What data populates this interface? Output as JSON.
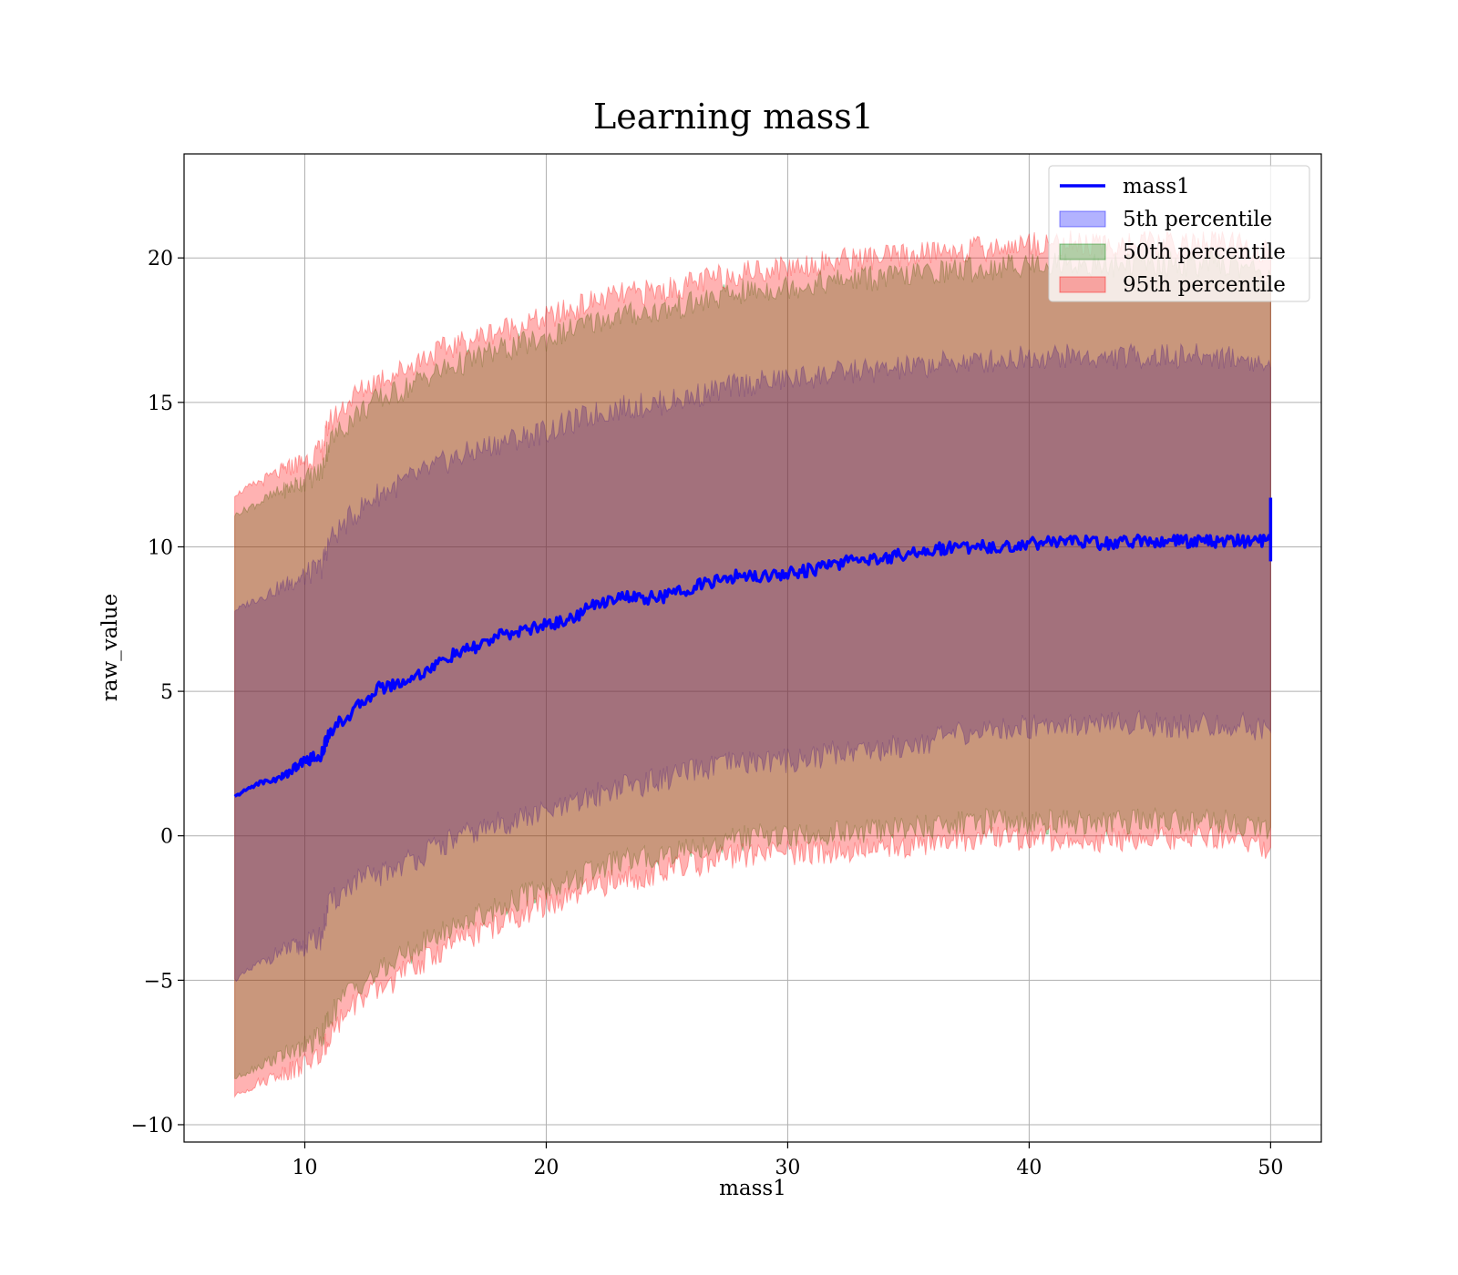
{
  "chart_data": {
    "type": "area",
    "title": "Learning mass1",
    "xlabel": "mass1",
    "ylabel": "raw_value",
    "xlim": [
      5,
      52.1
    ],
    "ylim": [
      -10.6,
      23.6
    ],
    "grid": true,
    "legend_position": "top-right",
    "x_ticks": [
      10,
      20,
      30,
      40,
      50
    ],
    "y_ticks": [
      -10,
      -5,
      0,
      5,
      10,
      15,
      20
    ],
    "x_tick_labels": [
      "10",
      "20",
      "30",
      "40",
      "50"
    ],
    "y_tick_labels": [
      "−10",
      "−5",
      "0",
      "5",
      "10",
      "15",
      "20"
    ],
    "x": [
      7.1,
      8,
      9,
      9.5,
      10,
      10.7,
      11,
      12,
      13,
      14,
      15,
      16,
      17,
      18,
      19,
      20,
      21,
      22,
      23,
      24,
      25,
      26,
      27,
      28,
      29,
      30,
      31,
      32,
      33,
      34,
      35,
      36,
      37,
      38,
      39,
      40,
      41,
      42,
      43,
      44,
      45,
      46,
      47,
      48,
      49,
      50
    ],
    "series": [
      {
        "name": "mass1",
        "kind": "line",
        "color": "#0000ff",
        "values": [
          1.35,
          1.8,
          2.0,
          2.3,
          2.6,
          2.8,
          3.6,
          4.3,
          5.1,
          5.3,
          5.7,
          6.2,
          6.5,
          6.9,
          7.1,
          7.3,
          7.5,
          8.0,
          8.3,
          8.2,
          8.3,
          8.6,
          8.8,
          9.0,
          9.0,
          9.1,
          9.2,
          9.4,
          9.6,
          9.6,
          9.8,
          9.9,
          10.0,
          10.0,
          10.0,
          10.1,
          10.2,
          10.2,
          10.1,
          10.2,
          10.2,
          10.2,
          10.2,
          10.2,
          10.2,
          10.2
        ],
        "end_spike": [
          9.5,
          11.7
        ]
      },
      {
        "name": "5th percentile",
        "kind": "band",
        "color": "#0000ff",
        "alpha": 0.3,
        "lower": [
          -5.0,
          -4.5,
          -4.0,
          -3.9,
          -3.8,
          -3.5,
          -2.4,
          -1.6,
          -1.4,
          -1.0,
          -0.6,
          -0.2,
          0.1,
          0.4,
          0.6,
          0.8,
          1.0,
          1.4,
          1.7,
          1.8,
          2.0,
          2.2,
          2.4,
          2.5,
          2.6,
          2.6,
          2.7,
          2.9,
          3.0,
          3.0,
          3.2,
          3.3,
          3.5,
          3.6,
          3.7,
          3.8,
          3.9,
          3.9,
          3.8,
          3.9,
          3.9,
          3.8,
          3.8,
          3.8,
          3.8,
          3.6
        ],
        "upper": [
          7.8,
          8.2,
          8.6,
          8.8,
          9.0,
          9.3,
          10.2,
          11.1,
          11.8,
          12.2,
          12.6,
          13.0,
          13.3,
          13.6,
          13.8,
          14.0,
          14.3,
          14.6,
          14.8,
          14.9,
          15.0,
          15.2,
          15.4,
          15.6,
          15.7,
          15.8,
          15.9,
          16.0,
          16.1,
          16.1,
          16.2,
          16.3,
          16.4,
          16.4,
          16.5,
          16.6,
          16.6,
          16.6,
          16.5,
          16.6,
          16.6,
          16.6,
          16.6,
          16.6,
          16.5,
          16.2
        ]
      },
      {
        "name": "50th percentile",
        "kind": "band",
        "color": "#008000",
        "alpha": 0.3,
        "lower": [
          -8.4,
          -8.0,
          -7.6,
          -7.5,
          -7.3,
          -7.0,
          -6.3,
          -5.2,
          -4.8,
          -4.2,
          -3.7,
          -3.2,
          -2.8,
          -2.5,
          -2.1,
          -1.8,
          -1.6,
          -1.2,
          -0.9,
          -0.8,
          -0.6,
          -0.4,
          -0.3,
          -0.1,
          0.0,
          0.0,
          0.0,
          0.1,
          0.1,
          0.2,
          0.3,
          0.3,
          0.4,
          0.5,
          0.5,
          0.5,
          0.5,
          0.5,
          0.4,
          0.5,
          0.5,
          0.5,
          0.5,
          0.5,
          0.4,
          0.3
        ],
        "upper": [
          11.1,
          11.5,
          11.9,
          12.1,
          12.3,
          12.6,
          13.6,
          14.5,
          15.1,
          15.4,
          15.9,
          16.2,
          16.5,
          16.8,
          17.0,
          17.2,
          17.5,
          17.8,
          18.0,
          18.1,
          18.2,
          18.4,
          18.6,
          18.8,
          18.9,
          19.0,
          19.1,
          19.2,
          19.3,
          19.3,
          19.4,
          19.5,
          19.6,
          19.6,
          19.7,
          19.8,
          19.8,
          19.8,
          19.7,
          19.8,
          19.8,
          19.8,
          19.8,
          19.8,
          19.7,
          19.4
        ]
      },
      {
        "name": "95th percentile",
        "kind": "band",
        "color": "#ff0000",
        "alpha": 0.3,
        "lower": [
          -9.0,
          -8.6,
          -8.2,
          -8.1,
          -7.9,
          -7.6,
          -6.9,
          -5.8,
          -5.4,
          -4.8,
          -4.3,
          -3.8,
          -3.4,
          -3.1,
          -2.7,
          -2.4,
          -2.2,
          -1.8,
          -1.5,
          -1.4,
          -1.2,
          -1.0,
          -0.9,
          -0.7,
          -0.6,
          -0.6,
          -0.6,
          -0.5,
          -0.5,
          -0.4,
          -0.3,
          -0.3,
          -0.2,
          -0.1,
          -0.1,
          -0.1,
          -0.1,
          -0.1,
          -0.2,
          -0.1,
          -0.1,
          -0.1,
          -0.1,
          -0.1,
          -0.2,
          -0.4
        ],
        "upper": [
          11.8,
          12.2,
          12.6,
          12.8,
          13.0,
          13.3,
          14.3,
          15.2,
          15.8,
          16.1,
          16.6,
          16.9,
          17.2,
          17.5,
          17.7,
          17.9,
          18.2,
          18.5,
          18.7,
          18.8,
          18.9,
          19.1,
          19.3,
          19.5,
          19.6,
          19.7,
          19.8,
          19.9,
          20.0,
          20.0,
          20.1,
          20.2,
          20.3,
          20.3,
          20.4,
          20.5,
          20.5,
          20.5,
          20.4,
          20.5,
          20.5,
          20.5,
          20.5,
          20.5,
          20.4,
          20.1
        ]
      }
    ]
  }
}
